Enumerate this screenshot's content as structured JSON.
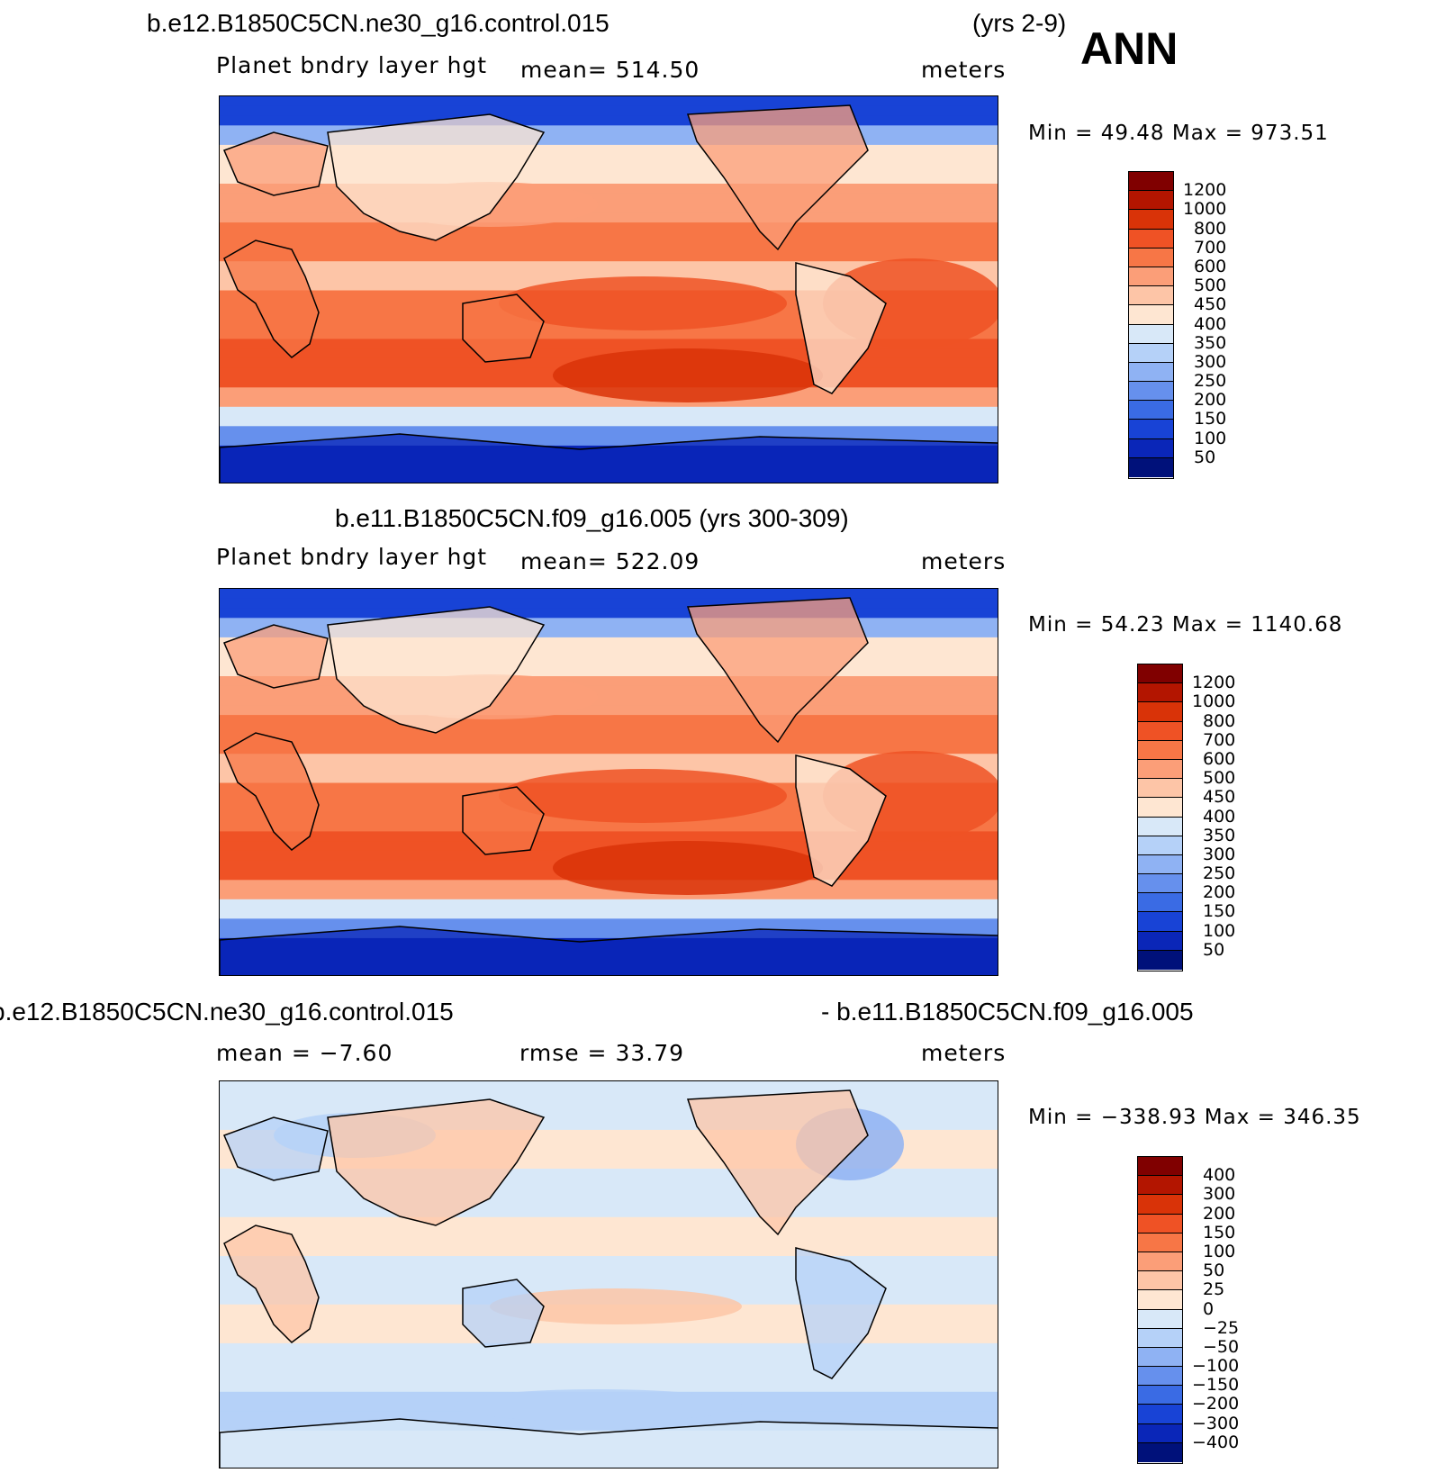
{
  "header": {
    "case_title": "b.e12.B1850C5CN.ne30_g16.control.015",
    "years": "(yrs 2-9)",
    "season": "ANN"
  },
  "panels": [
    {
      "title": "",
      "variable": "Planet bndry layer hgt",
      "stat1": "mean=  514.50",
      "stat2": "",
      "units": "meters",
      "minmax": "Min =   49.48  Max  =  973.51",
      "kind": "field",
      "colorbar": {
        "labels": [
          "1200",
          "1000",
          "800",
          "700",
          "600",
          "500",
          "450",
          "400",
          "350",
          "300",
          "250",
          "200",
          "150",
          "100",
          "50"
        ],
        "colors": [
          "#800000",
          "#b31500",
          "#d93308",
          "#ef5225",
          "#f77646",
          "#fb9e78",
          "#fdc5a7",
          "#fee6d2",
          "#d8e8f8",
          "#b5d1f8",
          "#8fb2f3",
          "#6690ed",
          "#3a6be4",
          "#1843d6",
          "#0a26b8",
          "#00117a"
        ]
      }
    },
    {
      "title": "b.e11.B1850C5CN.f09_g16.005 (yrs 300-309)",
      "variable": "Planet bndry layer hgt",
      "stat1": "mean=  522.09",
      "stat2": "",
      "units": "meters",
      "minmax": "Min =   54.23  Max  =  1140.68",
      "kind": "field",
      "colorbar": {
        "labels": [
          "1200",
          "1000",
          "800",
          "700",
          "600",
          "500",
          "450",
          "400",
          "350",
          "300",
          "250",
          "200",
          "150",
          "100",
          "50"
        ],
        "colors": [
          "#800000",
          "#b31500",
          "#d93308",
          "#ef5225",
          "#f77646",
          "#fb9e78",
          "#fdc5a7",
          "#fee6d2",
          "#d8e8f8",
          "#b5d1f8",
          "#8fb2f3",
          "#6690ed",
          "#3a6be4",
          "#1843d6",
          "#0a26b8",
          "#00117a"
        ]
      }
    },
    {
      "title_left": "b.e12.B1850C5CN.ne30_g16.control.015",
      "title_right": "- b.e11.B1850C5CN.f09_g16.005",
      "variable": "",
      "stat1": "mean =   −7.60",
      "stat2": "rmse =   33.79",
      "units": "meters",
      "minmax": "Min = −338.93  Max  =  346.35",
      "kind": "diff",
      "colorbar": {
        "labels": [
          "400",
          "300",
          "200",
          "150",
          "100",
          "50",
          "25",
          "0",
          "−25",
          "−50",
          "−100",
          "−150",
          "−200",
          "−300",
          "−400"
        ],
        "colors": [
          "#800000",
          "#b31500",
          "#d93308",
          "#ef5225",
          "#f77646",
          "#fb9e78",
          "#fdc5a7",
          "#fee6d2",
          "#d8e8f8",
          "#b5d1f8",
          "#8fb2f3",
          "#6690ed",
          "#3a6be4",
          "#1843d6",
          "#0a26b8",
          "#00117a"
        ]
      }
    }
  ],
  "chart_data": [
    {
      "type": "heatmap",
      "title": "b.e12.B1850C5CN.ne30_g16.control.015 (yrs 2-9)",
      "variable": "Planet bndry layer hgt",
      "units": "meters",
      "mean": 514.5,
      "min": 49.48,
      "max": 973.51,
      "levels": [
        50,
        100,
        150,
        200,
        250,
        300,
        350,
        400,
        450,
        500,
        600,
        700,
        800,
        1000,
        1200
      ]
    },
    {
      "type": "heatmap",
      "title": "b.e11.B1850C5CN.f09_g16.005 (yrs 300-309)",
      "variable": "Planet bndry layer hgt",
      "units": "meters",
      "mean": 522.09,
      "min": 54.23,
      "max": 1140.68,
      "levels": [
        50,
        100,
        150,
        200,
        250,
        300,
        350,
        400,
        450,
        500,
        600,
        700,
        800,
        1000,
        1200
      ]
    },
    {
      "type": "heatmap",
      "title": "b.e12.B1850C5CN.ne30_g16.control.015 - b.e11.B1850C5CN.f09_g16.005",
      "units": "meters",
      "mean": -7.6,
      "rmse": 33.79,
      "min": -338.93,
      "max": 346.35,
      "levels": [
        -400,
        -300,
        -200,
        -150,
        -100,
        -50,
        -25,
        0,
        25,
        50,
        100,
        150,
        200,
        300,
        400
      ]
    }
  ]
}
